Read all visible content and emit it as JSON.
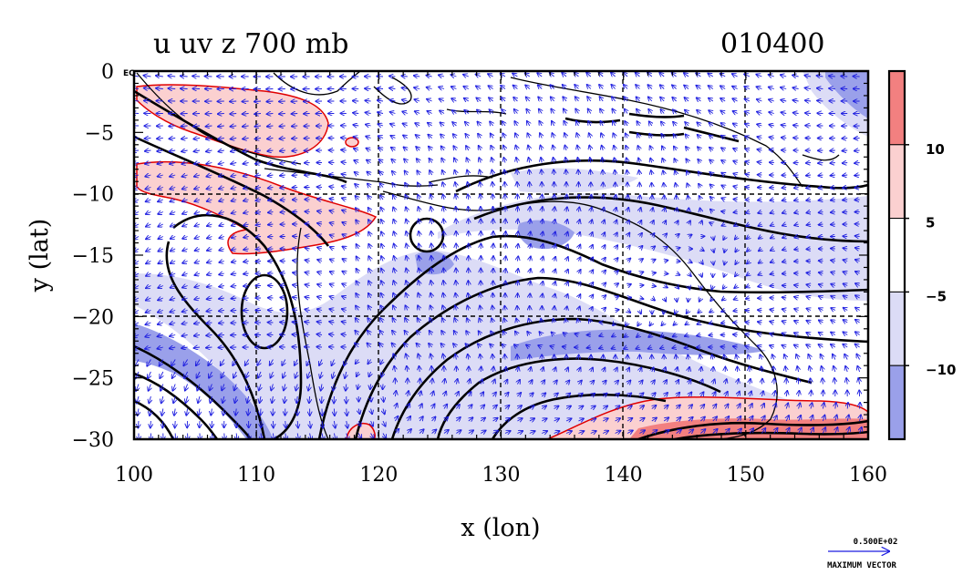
{
  "title": {
    "left": "u uv z 700 mb",
    "right": "010400"
  },
  "axes": {
    "xlabel": "x (lon)",
    "ylabel": "y (lat)",
    "xlim": [
      100,
      160
    ],
    "ylim": [
      -30,
      0
    ],
    "xticks": [
      {
        "value": 100,
        "label": "100"
      },
      {
        "value": 110,
        "label": "110"
      },
      {
        "value": 120,
        "label": "120"
      },
      {
        "value": 130,
        "label": "130"
      },
      {
        "value": 140,
        "label": "140"
      },
      {
        "value": 150,
        "label": "150"
      },
      {
        "value": 160,
        "label": "160"
      }
    ],
    "yticks": [
      {
        "value": 0,
        "label": "0"
      },
      {
        "value": -5,
        "label": "−5"
      },
      {
        "value": -10,
        "label": "−10"
      },
      {
        "value": -15,
        "label": "−15"
      },
      {
        "value": -20,
        "label": "−20"
      },
      {
        "value": -25,
        "label": "−25"
      },
      {
        "value": -30,
        "label": "−30"
      }
    ],
    "corner_label": "EQ",
    "grid": "dashed"
  },
  "colorbar": {
    "bins": [
      {
        "color": "#f28080"
      },
      {
        "color": "#fbd0d0"
      },
      {
        "color": "#ffffff"
      },
      {
        "color": "#dcdcf6"
      },
      {
        "color": "#9aa0ea"
      }
    ],
    "labels": [
      {
        "pos": 1,
        "text": "10"
      },
      {
        "pos": 2,
        "text": "5"
      },
      {
        "pos": 3,
        "text": "−5"
      },
      {
        "pos": 4,
        "text": "−10"
      }
    ]
  },
  "vector_key": {
    "magnitude": "0.500E+02",
    "caption": "MAXIMUM VECTOR"
  },
  "colors": {
    "positive_contour": "#e00000",
    "vectors": "#1c1ce0",
    "height_contours": "#000000",
    "strong_negative": "#9aa0ea",
    "weak_negative": "#dcdcf6",
    "weak_positive": "#fbd0d0",
    "strong_positive": "#f28080"
  }
}
